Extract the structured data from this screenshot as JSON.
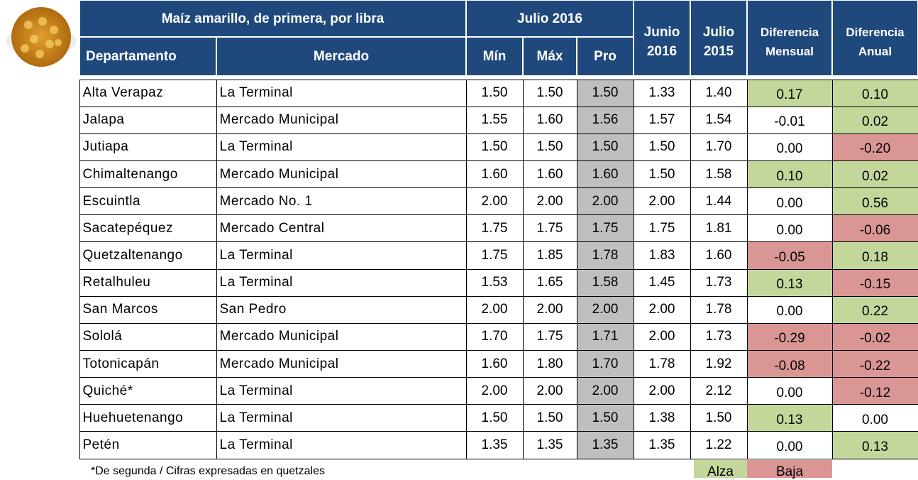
{
  "header": {
    "title": "Maíz amarillo, de primera, por libra",
    "period": "Julio 2016",
    "columns": [
      "Departamento",
      "Mercado",
      "Mín",
      "Máx",
      "Pro",
      [
        "Junio",
        "2016"
      ],
      [
        "Julio",
        "2015"
      ],
      [
        "Diferencia",
        "Mensual"
      ],
      [
        "Diferencia",
        "Anual"
      ]
    ]
  },
  "legend": [
    {
      "label": "Alza",
      "color": "#c4d79b"
    },
    {
      "label": "Baja",
      "color": "#da9694"
    }
  ],
  "table": {
    "rows": [
      {
        "cells": [
          "Alta Verapaz",
          "La Terminal",
          "1.50",
          "1.50",
          "1.50",
          "1.33",
          "1.40",
          "0.17",
          "0.10"
        ],
        "highlight": [
          0,
          0
        ]
      },
      {
        "cells": [
          "Jalapa",
          "Mercado Municipal",
          "1.55",
          "1.60",
          "1.56",
          "1.57",
          "1.54",
          "-0.01",
          "0.02"
        ],
        "highlight": [
          null,
          0
        ]
      },
      {
        "cells": [
          "Jutiapa",
          "La Terminal",
          "1.50",
          "1.50",
          "1.50",
          "1.50",
          "1.70",
          "0.00",
          "-0.20"
        ],
        "highlight": [
          null,
          1
        ]
      },
      {
        "cells": [
          "Chimaltenango",
          "Mercado Municipal",
          "1.60",
          "1.60",
          "1.60",
          "1.50",
          "1.58",
          "0.10",
          "0.02"
        ],
        "highlight": [
          0,
          0
        ]
      },
      {
        "cells": [
          "Escuintla",
          "Mercado No. 1",
          "2.00",
          "2.00",
          "2.00",
          "2.00",
          "1.44",
          "0.00",
          "0.56"
        ],
        "highlight": [
          null,
          0
        ]
      },
      {
        "cells": [
          "Sacatepéquez",
          "Mercado Central",
          "1.75",
          "1.75",
          "1.75",
          "1.75",
          "1.81",
          "0.00",
          "-0.06"
        ],
        "highlight": [
          null,
          1
        ]
      },
      {
        "cells": [
          "Quetzaltenango",
          "La Terminal",
          "1.75",
          "1.85",
          "1.78",
          "1.83",
          "1.60",
          "-0.05",
          "0.18"
        ],
        "highlight": [
          1,
          0
        ]
      },
      {
        "cells": [
          "Retalhuleu",
          "La Terminal",
          "1.53",
          "1.65",
          "1.58",
          "1.45",
          "1.73",
          "0.13",
          "-0.15"
        ],
        "highlight": [
          0,
          1
        ]
      },
      {
        "cells": [
          "San Marcos",
          "San Pedro",
          "2.00",
          "2.00",
          "2.00",
          "2.00",
          "1.78",
          "0.00",
          "0.22"
        ],
        "highlight": [
          null,
          0
        ]
      },
      {
        "cells": [
          "Sololá",
          "Mercado Municipal",
          "1.70",
          "1.75",
          "1.71",
          "2.00",
          "1.73",
          "-0.29",
          "-0.02"
        ],
        "highlight": [
          1,
          1
        ]
      },
      {
        "cells": [
          "Totonicapán",
          "Mercado Municipal",
          "1.60",
          "1.80",
          "1.70",
          "1.78",
          "1.92",
          "-0.08",
          "-0.22"
        ],
        "highlight": [
          1,
          1
        ]
      },
      {
        "cells": [
          "Quiché*",
          "La Terminal",
          "2.00",
          "2.00",
          "2.00",
          "2.00",
          "2.12",
          "0.00",
          "-0.12"
        ],
        "highlight": [
          null,
          1
        ]
      },
      {
        "cells": [
          "Huehuetenango",
          "La Terminal",
          "1.50",
          "1.50",
          "1.50",
          "1.38",
          "1.50",
          "0.13",
          "0.00"
        ],
        "highlight": [
          0,
          null
        ]
      },
      {
        "cells": [
          "Petén",
          "La Terminal",
          "1.35",
          "1.35",
          "1.35",
          "1.35",
          "1.22",
          "0.00",
          "0.13"
        ],
        "highlight": [
          null,
          0
        ]
      }
    ]
  },
  "footer": {
    "note": "*De segunda / Cifras expresadas en quetzales"
  }
}
